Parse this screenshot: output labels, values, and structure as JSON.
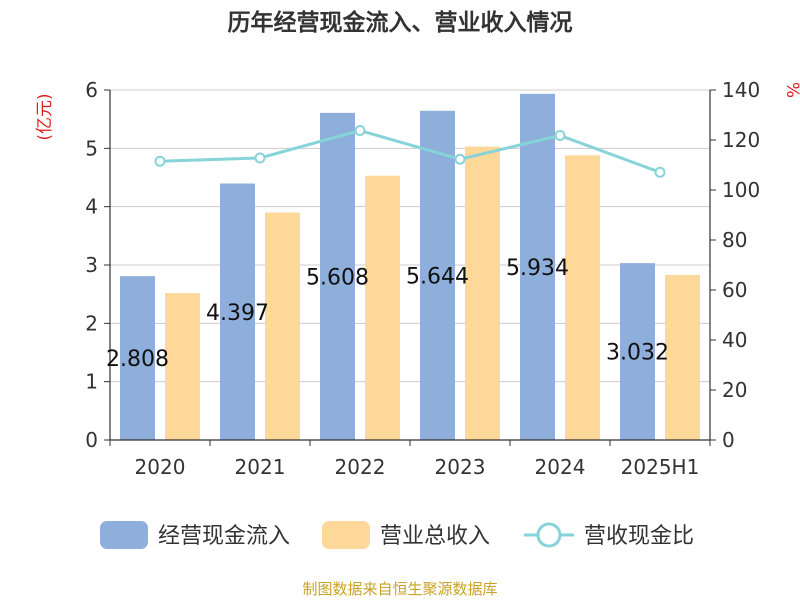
{
  "chart_data": {
    "type": "bar",
    "title": "历年经营现金流入、营业收入情况",
    "categories": [
      "2020",
      "2021",
      "2022",
      "2023",
      "2024",
      "2025H1"
    ],
    "y_left_unit": "(亿元)",
    "y_right_unit": "%",
    "ylim_left": [
      0,
      6
    ],
    "ylim_right": [
      0,
      140
    ],
    "yticks_left": [
      0,
      1,
      2,
      3,
      4,
      5,
      6
    ],
    "yticks_right": [
      0,
      20,
      40,
      60,
      80,
      100,
      120,
      140
    ],
    "grid": true,
    "legend_position": "bottom",
    "series": [
      {
        "name": "经营现金流入",
        "type": "bar",
        "axis": "left",
        "color": "#8eaedb",
        "values": [
          2.808,
          4.397,
          5.608,
          5.644,
          5.934,
          3.032
        ],
        "labels": [
          "2.808",
          "4.397",
          "5.608",
          "5.644",
          "5.934",
          "3.032"
        ]
      },
      {
        "name": "营业总收入",
        "type": "bar",
        "axis": "left",
        "color": "#fdd899",
        "values": [
          2.52,
          3.9,
          4.53,
          5.03,
          4.88,
          2.83
        ]
      },
      {
        "name": "营收现金比",
        "type": "line",
        "axis": "right",
        "color": "#86d3d9",
        "values": [
          111.5,
          112.8,
          123.8,
          112.3,
          121.8,
          107.1
        ]
      }
    ]
  },
  "footer": {
    "source": "制图数据来自恒生聚源数据库"
  }
}
